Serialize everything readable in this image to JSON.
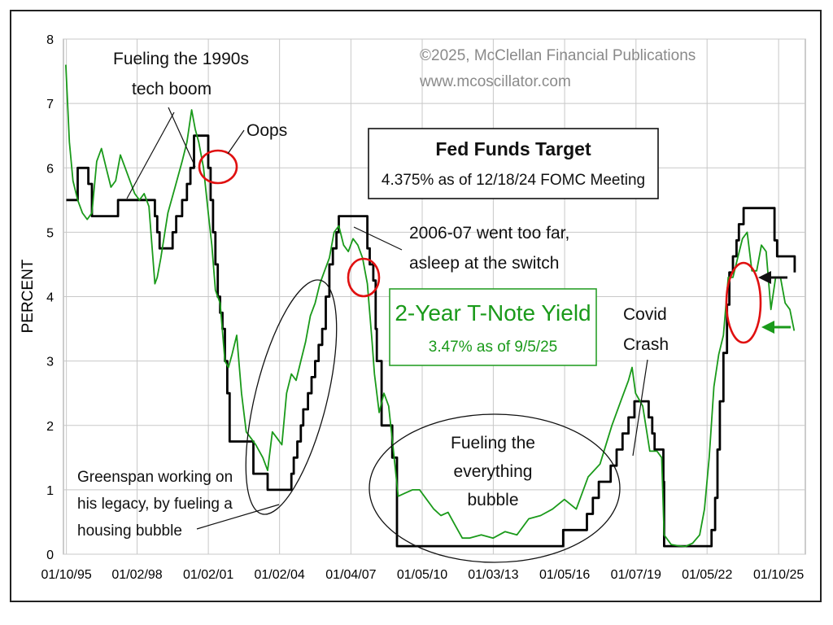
{
  "chart_data": {
    "type": "line",
    "ylabel": "PERCENT",
    "ylim": [
      0,
      8
    ],
    "yticks": [
      "0",
      "1",
      "2",
      "3",
      "4",
      "5",
      "6",
      "7",
      "8"
    ],
    "xticks": [
      "01/10/95",
      "01/02/98",
      "01/02/01",
      "01/02/04",
      "01/04/07",
      "01/05/10",
      "01/03/13",
      "01/05/16",
      "01/07/19",
      "01/05/22",
      "01/10/25"
    ],
    "grid": true,
    "copyright": [
      "©2025, McClellan Financial Publications",
      "www.mcoscillator.com"
    ],
    "fed_funds_box": {
      "title": "Fed Funds Target",
      "subtitle": "4.375% as of 12/18/24 FOMC Meeting"
    },
    "tnote_box": {
      "title": "2-Year T-Note Yield",
      "subtitle": "3.47% as of 9/5/25"
    },
    "annotations": {
      "fueling_1990s": [
        "Fueling the 1990s",
        "tech boom"
      ],
      "oops": "Oops",
      "went_too_far": [
        "2006-07 went too far,",
        "asleep at the switch"
      ],
      "covid": [
        "Covid",
        "Crash"
      ],
      "everything_bubble": [
        "Fueling the",
        "everything",
        "bubble"
      ],
      "greenspan": [
        "Greenspan working on",
        "his legacy, by fueling a",
        "housing bubble"
      ]
    },
    "series": [
      {
        "name": "Fed Funds Target",
        "color": "#000000",
        "step": true,
        "x": [
          1995.02,
          1995.5,
          1995.95,
          1996.1,
          1997.2,
          1998.75,
          1998.85,
          1998.95,
          1999.5,
          1999.65,
          1999.9,
          2000.1,
          2000.25,
          2000.4,
          2001.0,
          2001.1,
          2001.2,
          2001.3,
          2001.4,
          2001.5,
          2001.6,
          2001.7,
          2001.8,
          2001.9,
          2002.9,
          2003.5,
          2004.5,
          2004.6,
          2004.75,
          2004.9,
          2005.0,
          2005.2,
          2005.35,
          2005.5,
          2005.65,
          2005.8,
          2005.95,
          2006.1,
          2006.25,
          2006.4,
          2006.5,
          2007.7,
          2007.8,
          2007.95,
          2008.05,
          2008.1,
          2008.3,
          2008.75,
          2008.95,
          2015.95,
          2016.95,
          2017.2,
          2017.45,
          2017.95,
          2018.2,
          2018.45,
          2018.7,
          2018.95,
          2019.55,
          2019.7,
          2019.8,
          2020.17,
          2020.2,
          2022.2,
          2022.35,
          2022.45,
          2022.55,
          2022.7,
          2022.85,
          2022.95,
          2023.1,
          2023.25,
          2023.35,
          2023.55,
          2024.7,
          2024.85,
          2024.96,
          2025.7
        ],
        "y": [
          5.5,
          6.0,
          5.75,
          5.25,
          5.5,
          5.25,
          5.0,
          4.75,
          5.0,
          5.25,
          5.5,
          5.75,
          6.0,
          6.5,
          6.0,
          5.5,
          5.0,
          4.5,
          4.0,
          3.75,
          3.5,
          3.0,
          2.5,
          1.75,
          1.25,
          1.0,
          1.25,
          1.5,
          1.75,
          2.0,
          2.25,
          2.5,
          2.75,
          3.0,
          3.25,
          3.5,
          4.0,
          4.5,
          4.75,
          5.0,
          5.25,
          4.75,
          4.5,
          4.25,
          3.5,
          3.0,
          2.0,
          1.5,
          0.125,
          0.375,
          0.625,
          0.875,
          1.125,
          1.375,
          1.625,
          1.875,
          2.125,
          2.375,
          2.125,
          1.875,
          1.625,
          1.125,
          0.125,
          0.375,
          0.875,
          1.625,
          2.375,
          3.125,
          3.875,
          4.375,
          4.625,
          4.875,
          5.125,
          5.375,
          5.375,
          4.875,
          4.625,
          4.375
        ]
      },
      {
        "name": "2-Year T-Note Yield",
        "color": "#1a9a1a",
        "x": [
          1995.0,
          1995.15,
          1995.3,
          1995.5,
          1995.7,
          1995.9,
          1996.1,
          1996.3,
          1996.5,
          1996.7,
          1996.9,
          1997.1,
          1997.3,
          1997.5,
          1997.7,
          1997.9,
          1998.1,
          1998.3,
          1998.5,
          1998.75,
          1998.85,
          1999.0,
          1999.3,
          1999.6,
          1999.9,
          2000.1,
          2000.3,
          2000.45,
          2000.6,
          2000.8,
          2001.0,
          2001.15,
          2001.3,
          2001.5,
          2001.7,
          2001.85,
          2002.0,
          2002.2,
          2002.4,
          2002.6,
          2002.8,
          2003.0,
          2003.3,
          2003.5,
          2003.7,
          2003.9,
          2004.1,
          2004.3,
          2004.5,
          2004.7,
          2004.9,
          2005.1,
          2005.3,
          2005.5,
          2005.7,
          2005.9,
          2006.1,
          2006.3,
          2006.5,
          2006.7,
          2006.9,
          2007.1,
          2007.3,
          2007.5,
          2007.7,
          2007.9,
          2008.0,
          2008.2,
          2008.4,
          2008.6,
          2008.8,
          2009.0,
          2009.3,
          2009.6,
          2009.9,
          2010.2,
          2010.5,
          2010.8,
          2011.1,
          2011.4,
          2011.7,
          2012.0,
          2012.5,
          2013.0,
          2013.5,
          2014.0,
          2014.5,
          2015.0,
          2015.5,
          2016.0,
          2016.5,
          2017.0,
          2017.5,
          2018.0,
          2018.4,
          2018.7,
          2018.85,
          2019.0,
          2019.3,
          2019.6,
          2019.9,
          2020.1,
          2020.2,
          2020.5,
          2020.8,
          2021.1,
          2021.4,
          2021.7,
          2021.9,
          2022.1,
          2022.3,
          2022.5,
          2022.7,
          2022.9,
          2023.1,
          2023.3,
          2023.5,
          2023.7,
          2023.9,
          2024.1,
          2024.3,
          2024.5,
          2024.7,
          2024.9,
          2025.1,
          2025.3,
          2025.5,
          2025.68
        ],
        "y": [
          7.6,
          6.4,
          5.8,
          5.5,
          5.3,
          5.2,
          5.3,
          6.1,
          6.3,
          6.0,
          5.7,
          5.8,
          6.2,
          6.0,
          5.8,
          5.6,
          5.5,
          5.6,
          5.4,
          4.2,
          4.3,
          4.6,
          5.3,
          5.7,
          6.1,
          6.4,
          6.9,
          6.6,
          6.4,
          6.0,
          5.3,
          4.8,
          4.1,
          3.9,
          3.0,
          2.9,
          3.1,
          3.4,
          2.5,
          1.9,
          1.8,
          1.7,
          1.5,
          1.3,
          1.9,
          1.8,
          1.7,
          2.5,
          2.8,
          2.7,
          3.0,
          3.3,
          3.7,
          3.9,
          4.2,
          4.4,
          4.6,
          5.0,
          5.1,
          4.8,
          4.7,
          4.9,
          4.8,
          4.6,
          4.2,
          3.3,
          2.8,
          2.2,
          2.5,
          2.3,
          1.6,
          0.9,
          0.95,
          1.0,
          1.0,
          0.85,
          0.7,
          0.6,
          0.65,
          0.45,
          0.25,
          0.25,
          0.3,
          0.25,
          0.35,
          0.3,
          0.55,
          0.6,
          0.7,
          0.85,
          0.7,
          1.2,
          1.4,
          2.0,
          2.4,
          2.7,
          2.9,
          2.5,
          2.3,
          1.6,
          1.6,
          1.5,
          0.3,
          0.15,
          0.13,
          0.12,
          0.17,
          0.3,
          0.7,
          1.5,
          2.6,
          3.1,
          3.4,
          4.3,
          4.3,
          4.6,
          4.9,
          5.0,
          4.4,
          4.4,
          4.8,
          4.7,
          3.8,
          4.3,
          4.3,
          3.9,
          3.8,
          3.47
        ]
      }
    ]
  }
}
